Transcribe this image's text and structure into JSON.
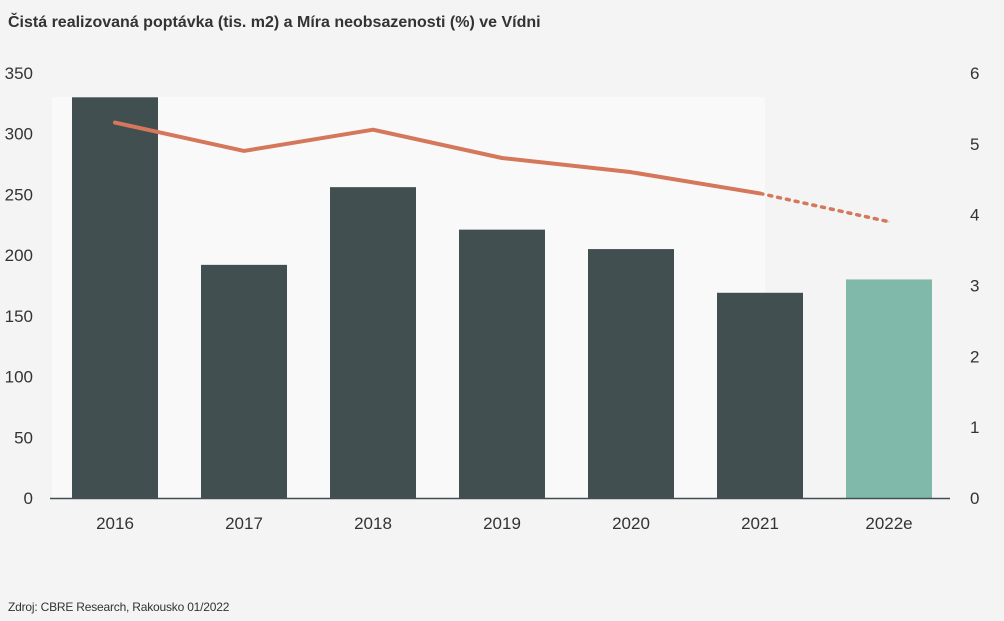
{
  "title": "Čistá realizovaná poptávka (tis. m2) a Míra neobsazenosti (%) ve Vídni",
  "source": "Zdroj: CBRE Research, Rakousko 01/2022",
  "chart_data": {
    "type": "bar",
    "categories": [
      "2016",
      "2017",
      "2018",
      "2019",
      "2020",
      "2021",
      "2022e"
    ],
    "series": [
      {
        "type": "bar",
        "axis": "left",
        "values": [
          330,
          192,
          256,
          221,
          205,
          169,
          180
        ],
        "colors": [
          "#424f51",
          "#424f51",
          "#424f51",
          "#424f51",
          "#424f51",
          "#424f51",
          "#80b8aa"
        ]
      },
      {
        "type": "line",
        "axis": "right",
        "values": [
          5.3,
          4.9,
          5.2,
          4.8,
          4.6,
          4.3,
          3.9
        ],
        "color": "#d4775a",
        "forecast_from_index": 5,
        "forecast_style": "dotted"
      }
    ],
    "y_left": {
      "ylim": [
        0,
        350
      ],
      "ticks": [
        "0",
        "50",
        "100",
        "150",
        "200",
        "250",
        "300",
        "350"
      ]
    },
    "y_right": {
      "ylim": [
        0,
        6
      ],
      "ticks": [
        "0",
        "1",
        "2",
        "3",
        "4",
        "5",
        "6"
      ]
    },
    "grid": false,
    "legend": "none"
  }
}
